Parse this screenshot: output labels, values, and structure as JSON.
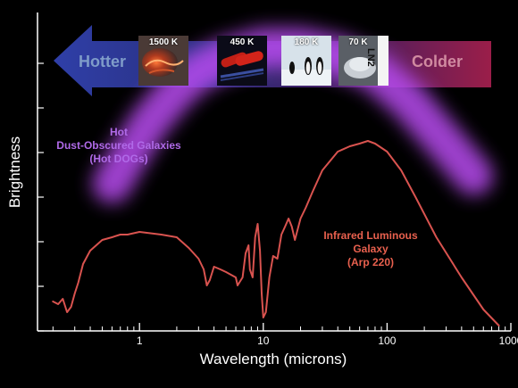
{
  "chart_data": {
    "type": "line",
    "xlabel": "Wavelength (microns)",
    "ylabel": "Brightness",
    "x_scale": "log",
    "xlim": [
      0.15,
      1000
    ],
    "x_ticks": [
      1,
      10,
      100,
      1000
    ],
    "x_tick_labels": [
      "1",
      "10",
      "100",
      "1000"
    ],
    "series": [
      {
        "name": "Infrared Luminous Galaxy (Arp 220)",
        "color": "#d9534f",
        "points": [
          [
            0.2,
            0.11
          ],
          [
            0.22,
            0.1
          ],
          [
            0.24,
            0.12
          ],
          [
            0.26,
            0.07
          ],
          [
            0.28,
            0.09
          ],
          [
            0.3,
            0.14
          ],
          [
            0.32,
            0.18
          ],
          [
            0.35,
            0.25
          ],
          [
            0.4,
            0.3
          ],
          [
            0.5,
            0.34
          ],
          [
            0.6,
            0.35
          ],
          [
            0.7,
            0.36
          ],
          [
            0.8,
            0.36
          ],
          [
            1.0,
            0.37
          ],
          [
            1.5,
            0.36
          ],
          [
            2.0,
            0.35
          ],
          [
            2.5,
            0.31
          ],
          [
            3.0,
            0.27
          ],
          [
            3.3,
            0.23
          ],
          [
            3.5,
            0.17
          ],
          [
            3.7,
            0.19
          ],
          [
            4.0,
            0.24
          ],
          [
            4.5,
            0.23
          ],
          [
            5.0,
            0.22
          ],
          [
            6.0,
            0.2
          ],
          [
            6.2,
            0.17
          ],
          [
            6.8,
            0.2
          ],
          [
            7.2,
            0.29
          ],
          [
            7.6,
            0.32
          ],
          [
            7.8,
            0.23
          ],
          [
            8.2,
            0.2
          ],
          [
            8.6,
            0.35
          ],
          [
            9.0,
            0.4
          ],
          [
            9.4,
            0.3
          ],
          [
            9.7,
            0.14
          ],
          [
            10.0,
            0.05
          ],
          [
            10.5,
            0.07
          ],
          [
            11.2,
            0.2
          ],
          [
            12.0,
            0.28
          ],
          [
            13.0,
            0.27
          ],
          [
            14.0,
            0.36
          ],
          [
            15.0,
            0.39
          ],
          [
            16.0,
            0.42
          ],
          [
            17.0,
            0.39
          ],
          [
            18.0,
            0.34
          ],
          [
            20.0,
            0.42
          ],
          [
            22.0,
            0.46
          ],
          [
            25.0,
            0.52
          ],
          [
            30.0,
            0.6
          ],
          [
            40.0,
            0.67
          ],
          [
            50.0,
            0.69
          ],
          [
            60.0,
            0.7
          ],
          [
            70.0,
            0.71
          ],
          [
            80.0,
            0.7
          ],
          [
            100.0,
            0.67
          ],
          [
            130.0,
            0.6
          ],
          [
            170.0,
            0.5
          ],
          [
            250.0,
            0.35
          ],
          [
            400.0,
            0.2
          ],
          [
            600.0,
            0.08
          ],
          [
            800.0,
            0.02
          ]
        ]
      },
      {
        "name": "Hot Dust-Obscured Galaxies (Hot DOGs)",
        "color": "#b84cf0",
        "style": "band",
        "points": [
          [
            0.6,
            0.55
          ],
          [
            0.8,
            0.65
          ],
          [
            1.2,
            0.78
          ],
          [
            2.0,
            0.9
          ],
          [
            3.0,
            0.97
          ],
          [
            5.0,
            1.02
          ],
          [
            10.0,
            1.06
          ],
          [
            20.0,
            1.06
          ],
          [
            40.0,
            1.03
          ],
          [
            80.0,
            0.97
          ],
          [
            150.0,
            0.86
          ],
          [
            300.0,
            0.7
          ],
          [
            500.0,
            0.58
          ]
        ]
      }
    ],
    "annotations": [
      {
        "id": "dog",
        "lines": [
          "Hot",
          "Dust-Obscured Galaxies",
          "(Hot DOGs)"
        ],
        "color": "#b84cf0"
      },
      {
        "id": "arp",
        "lines": [
          "Infrared Luminous",
          "Galaxy",
          "(Arp 220)"
        ],
        "color": "#e8604e"
      }
    ]
  },
  "banner": {
    "left_label": "Hotter",
    "right_label": "Colder",
    "thumbnails": [
      {
        "label": "1500 K",
        "icon": "lava-icon"
      },
      {
        "label": "450 K",
        "icon": "hot-dogs-icon"
      },
      {
        "label": "180 K",
        "icon": "penguins-icon"
      },
      {
        "label": "70 K",
        "icon": "liquid-nitrogen-icon",
        "side_text": "LN2"
      }
    ]
  }
}
